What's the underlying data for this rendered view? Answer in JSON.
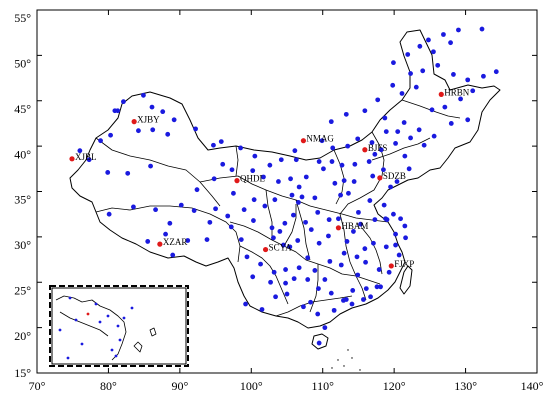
{
  "axes": {
    "lon_ticks": [
      "70°",
      "80°",
      "90°",
      "100°",
      "110°",
      "120°",
      "130°",
      "140°"
    ],
    "lat_ticks": [
      "15°",
      "20°",
      "25°",
      "30°",
      "35°",
      "40°",
      "45°",
      "50°",
      "55°"
    ]
  },
  "colors": {
    "background_station": "#1a1adf",
    "highlight_station": "#e01919",
    "border": "#000000"
  },
  "labeled_stations": [
    {
      "code": "HRBN",
      "lon": 126.6,
      "lat": 45.7
    },
    {
      "code": "XJBY",
      "lon": 83.6,
      "lat": 42.7
    },
    {
      "code": "XJBL",
      "lon": 74.9,
      "lat": 38.6
    },
    {
      "code": "NMAG",
      "lon": 107.3,
      "lat": 40.6
    },
    {
      "code": "BJFS",
      "lon": 115.9,
      "lat": 39.6
    },
    {
      "code": "QHDL",
      "lon": 98.0,
      "lat": 36.2
    },
    {
      "code": "SDZB",
      "lon": 118.0,
      "lat": 36.5
    },
    {
      "code": "XZAR",
      "lon": 87.2,
      "lat": 29.2
    },
    {
      "code": "SCYA",
      "lon": 102.0,
      "lat": 28.6
    },
    {
      "code": "HBAM",
      "lon": 112.2,
      "lat": 31.0
    },
    {
      "code": "FJXP",
      "lon": 119.6,
      "lat": 26.8
    }
  ],
  "stations": [
    [
      132.3,
      52.9
    ],
    [
      129.0,
      52.8
    ],
    [
      127.9,
      51.4
    ],
    [
      126.9,
      52.3
    ],
    [
      124.8,
      51.7
    ],
    [
      123.6,
      51.0
    ],
    [
      125.5,
      50.4
    ],
    [
      121.9,
      50.1
    ],
    [
      119.9,
      49.2
    ],
    [
      122.3,
      48.0
    ],
    [
      124.0,
      48.3
    ],
    [
      126.1,
      48.9
    ],
    [
      128.3,
      47.9
    ],
    [
      130.3,
      47.3
    ],
    [
      132.5,
      47.7
    ],
    [
      134.3,
      48.2
    ],
    [
      131.0,
      46.1
    ],
    [
      129.3,
      45.2
    ],
    [
      127.1,
      44.3
    ],
    [
      125.3,
      44.0
    ],
    [
      123.1,
      46.5
    ],
    [
      121.1,
      45.8
    ],
    [
      119.8,
      46.7
    ],
    [
      117.7,
      45.1
    ],
    [
      115.9,
      43.9
    ],
    [
      113.3,
      43.5
    ],
    [
      111.2,
      42.7
    ],
    [
      118.7,
      43.1
    ],
    [
      121.4,
      42.6
    ],
    [
      123.5,
      41.8
    ],
    [
      125.6,
      41.1
    ],
    [
      128.0,
      42.5
    ],
    [
      130.3,
      42.9
    ],
    [
      124.2,
      40.1
    ],
    [
      122.3,
      40.9
    ],
    [
      120.2,
      40.3
    ],
    [
      121.5,
      38.9
    ],
    [
      118.2,
      39.6
    ],
    [
      117.3,
      39.1
    ],
    [
      116.5,
      38.3
    ],
    [
      114.5,
      38.0
    ],
    [
      112.7,
      37.9
    ],
    [
      111.4,
      39.8
    ],
    [
      109.9,
      40.6
    ],
    [
      106.1,
      39.5
    ],
    [
      104.2,
      38.5
    ],
    [
      106.3,
      38.5
    ],
    [
      110.1,
      37.5
    ],
    [
      108.9,
      34.3
    ],
    [
      107.1,
      34.4
    ],
    [
      105.7,
      34.6
    ],
    [
      103.8,
      36.1
    ],
    [
      101.7,
      36.6
    ],
    [
      100.2,
      37.3
    ],
    [
      97.3,
      37.4
    ],
    [
      94.8,
      36.4
    ],
    [
      92.4,
      35.2
    ],
    [
      96.0,
      38.0
    ],
    [
      98.5,
      39.8
    ],
    [
      100.5,
      38.9
    ],
    [
      102.6,
      37.9
    ],
    [
      95.8,
      40.5
    ],
    [
      94.7,
      40.1
    ],
    [
      92.2,
      41.9
    ],
    [
      89.2,
      42.9
    ],
    [
      87.6,
      43.8
    ],
    [
      86.1,
      44.3
    ],
    [
      84.9,
      45.6
    ],
    [
      82.1,
      44.9
    ],
    [
      80.9,
      43.9
    ],
    [
      81.3,
      43.9
    ],
    [
      84.2,
      41.7
    ],
    [
      86.2,
      41.8
    ],
    [
      88.3,
      41.3
    ],
    [
      80.3,
      41.2
    ],
    [
      78.9,
      40.6
    ],
    [
      76.0,
      39.5
    ],
    [
      77.3,
      38.5
    ],
    [
      79.9,
      37.1
    ],
    [
      82.7,
      37.0
    ],
    [
      85.9,
      37.8
    ],
    [
      80.1,
      32.5
    ],
    [
      83.5,
      33.3
    ],
    [
      88.6,
      31.5
    ],
    [
      91.1,
      29.6
    ],
    [
      89.0,
      28.0
    ],
    [
      93.8,
      29.7
    ],
    [
      97.2,
      31.1
    ],
    [
      94.2,
      31.6
    ],
    [
      92.0,
      32.9
    ],
    [
      98.6,
      29.7
    ],
    [
      100.3,
      31.8
    ],
    [
      104.0,
      30.6
    ],
    [
      103.1,
      29.9
    ],
    [
      104.5,
      29.1
    ],
    [
      106.5,
      29.6
    ],
    [
      108.4,
      30.8
    ],
    [
      105.9,
      32.4
    ],
    [
      107.6,
      31.6
    ],
    [
      109.5,
      29.3
    ],
    [
      106.7,
      26.6
    ],
    [
      104.8,
      26.4
    ],
    [
      102.7,
      25.0
    ],
    [
      100.2,
      25.6
    ],
    [
      99.2,
      22.6
    ],
    [
      101.5,
      22.0
    ],
    [
      103.4,
      23.4
    ],
    [
      105.0,
      23.7
    ],
    [
      107.3,
      22.3
    ],
    [
      108.3,
      22.8
    ],
    [
      110.3,
      25.3
    ],
    [
      109.4,
      24.3
    ],
    [
      111.6,
      21.9
    ],
    [
      110.3,
      20.0
    ],
    [
      109.5,
      18.3
    ],
    [
      112.9,
      23.0
    ],
    [
      113.3,
      23.1
    ],
    [
      114.1,
      22.6
    ],
    [
      115.7,
      23.1
    ],
    [
      116.7,
      23.4
    ],
    [
      117.6,
      24.5
    ],
    [
      118.1,
      24.5
    ],
    [
      119.3,
      26.1
    ],
    [
      120.7,
      28.0
    ],
    [
      121.6,
      29.9
    ],
    [
      120.2,
      30.3
    ],
    [
      121.5,
      31.2
    ],
    [
      119.0,
      31.9
    ],
    [
      118.8,
      32.0
    ],
    [
      117.3,
      31.9
    ],
    [
      116.6,
      34.0
    ],
    [
      115.3,
      31.4
    ],
    [
      114.3,
      30.6
    ],
    [
      113.0,
      28.2
    ],
    [
      111.0,
      27.3
    ],
    [
      112.6,
      26.9
    ],
    [
      114.9,
      25.8
    ],
    [
      115.9,
      28.7
    ],
    [
      117.1,
      29.3
    ],
    [
      116.0,
      27.2
    ],
    [
      113.6,
      34.8
    ],
    [
      112.5,
      34.6
    ],
    [
      111.7,
      35.9
    ],
    [
      113.0,
      36.2
    ],
    [
      114.4,
      36.1
    ],
    [
      117.0,
      36.7
    ],
    [
      119.5,
      35.5
    ],
    [
      120.4,
      36.1
    ],
    [
      122.1,
      37.5
    ],
    [
      118.5,
      37.4
    ],
    [
      110.9,
      31.9
    ],
    [
      112.2,
      32.0
    ],
    [
      109.3,
      32.7
    ],
    [
      106.6,
      33.8
    ],
    [
      103.3,
      34.1
    ],
    [
      101.9,
      33.4
    ],
    [
      100.4,
      34.1
    ],
    [
      102.9,
      31.0
    ],
    [
      104.7,
      31.5
    ],
    [
      105.4,
      28.9
    ],
    [
      107.9,
      27.7
    ],
    [
      108.9,
      26.3
    ],
    [
      110.8,
      30.1
    ],
    [
      115.0,
      32.7
    ],
    [
      118.6,
      33.5
    ],
    [
      119.9,
      32.5
    ],
    [
      120.9,
      32.0
    ],
    [
      113.4,
      29.5
    ],
    [
      114.8,
      27.8
    ],
    [
      118.9,
      28.9
    ],
    [
      105.5,
      36.4
    ],
    [
      106.7,
      35.5
    ],
    [
      107.7,
      36.6
    ],
    [
      109.5,
      38.3
    ],
    [
      111.3,
      38.3
    ],
    [
      113.5,
      40.0
    ],
    [
      114.9,
      40.8
    ],
    [
      116.9,
      40.4
    ],
    [
      118.9,
      41.6
    ],
    [
      120.5,
      41.6
    ],
    [
      90.2,
      33.5
    ],
    [
      86.6,
      33.0
    ],
    [
      95.0,
      33.1
    ],
    [
      88.0,
      30.3
    ],
    [
      85.5,
      29.5
    ],
    [
      97.5,
      34.8
    ],
    [
      99.0,
      33.0
    ],
    [
      96.7,
      32.3
    ],
    [
      99.4,
      27.8
    ],
    [
      101.3,
      27.0
    ],
    [
      103.2,
      26.1
    ],
    [
      104.8,
      24.9
    ],
    [
      106.0,
      25.4
    ],
    [
      107.9,
      25.3
    ],
    [
      109.3,
      21.5
    ],
    [
      111.2,
      23.8
    ],
    [
      114.2,
      24.1
    ],
    [
      116.1,
      24.3
    ],
    [
      117.9,
      26.4
    ],
    [
      120.2,
      29.1
    ]
  ]
}
